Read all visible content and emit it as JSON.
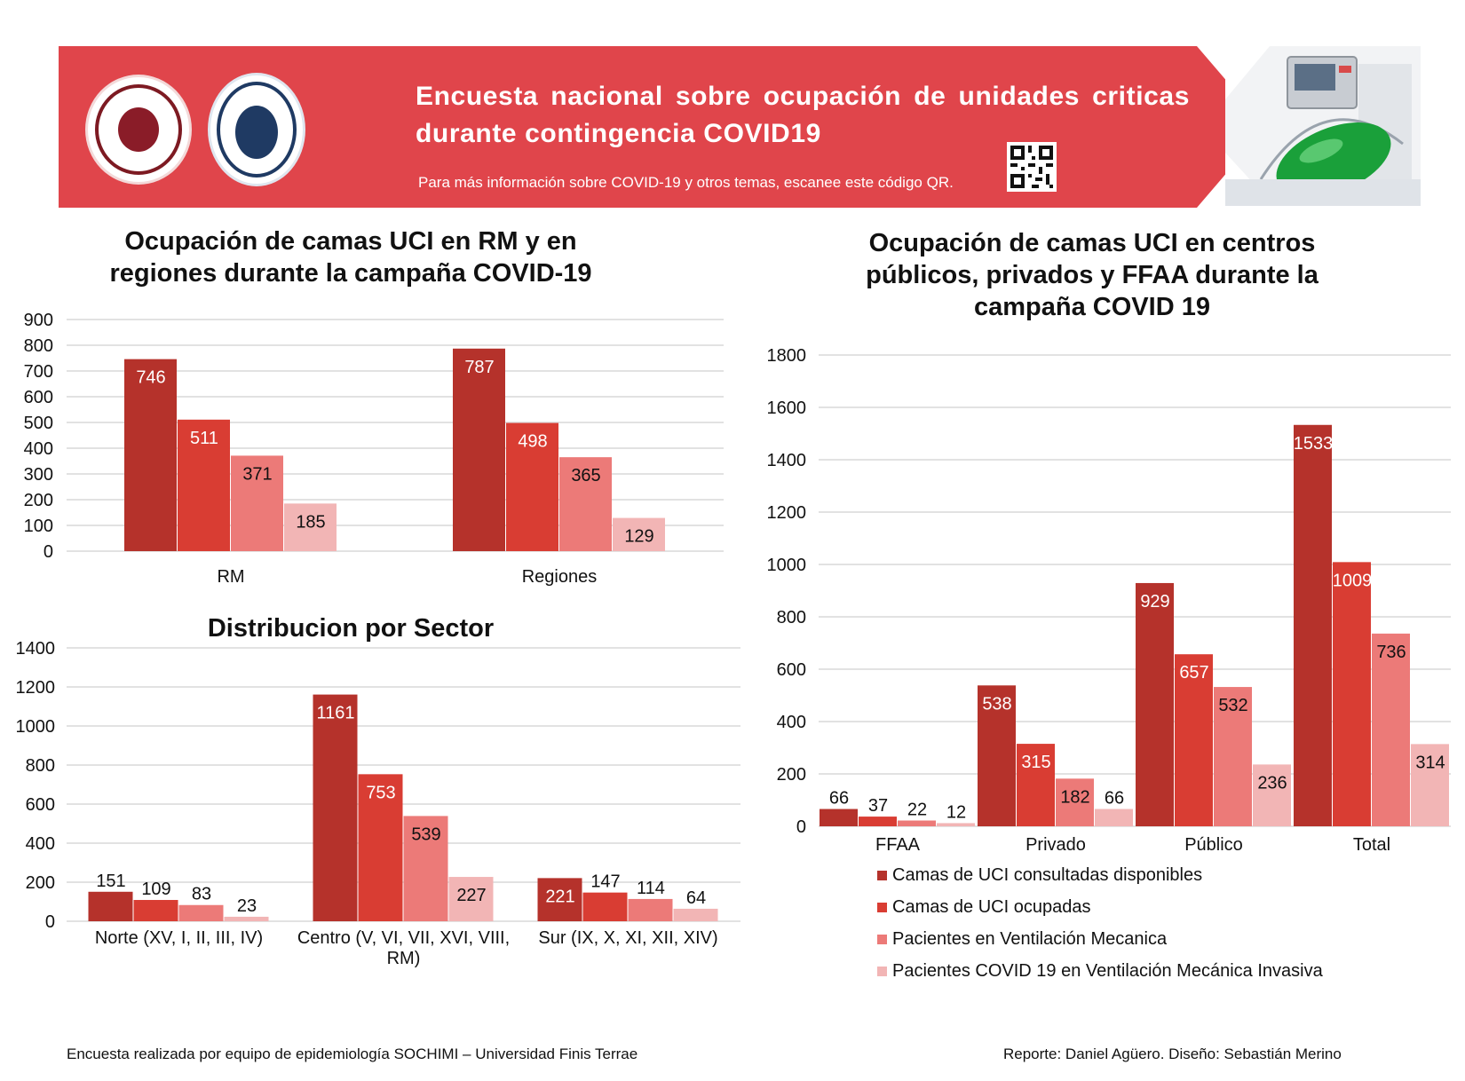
{
  "header": {
    "title": "Encuesta nacional sobre ocupación de unidades criticas durante contingencia COVID19",
    "subtitle": "Para más información sobre COVID-19 y otros temas, escanee este código QR.",
    "banner_color": "#e0454b",
    "logos": [
      "sochimi-logo",
      "universidad-finis-terrae-logo"
    ],
    "icons": [
      "qr-code-icon",
      "icu-ventilator-photo"
    ]
  },
  "colors": [
    "#b5322b",
    "#d93d33",
    "#ec7a78",
    "#f2b5b5"
  ],
  "chart_data": [
    {
      "type": "bar",
      "title": "Ocupación de camas UCI en RM y en regiones durante la campaña COVID-19",
      "categories": [
        "RM",
        "Regiones"
      ],
      "series": [
        {
          "values": [
            746,
            787
          ]
        },
        {
          "values": [
            511,
            498
          ]
        },
        {
          "values": [
            371,
            365
          ]
        },
        {
          "values": [
            185,
            129
          ]
        }
      ],
      "ylim": [
        0,
        900
      ],
      "yticks": [
        "0",
        "100",
        "200",
        "300",
        "400",
        "500",
        "600",
        "700",
        "800",
        "900"
      ],
      "grid": true
    },
    {
      "type": "bar",
      "title": "Distribucion por Sector",
      "categories": [
        "Norte (XV, I, II, III, IV)",
        "Centro (V, VI, VII, XVI, VIII, RM)",
        "Sur (IX, X, XI, XII, XIV)"
      ],
      "series": [
        {
          "values": [
            151,
            1161,
            221
          ]
        },
        {
          "values": [
            109,
            753,
            147
          ]
        },
        {
          "values": [
            83,
            539,
            114
          ]
        },
        {
          "values": [
            23,
            227,
            64
          ]
        }
      ],
      "ylim": [
        0,
        1400
      ],
      "yticks": [
        "0",
        "200",
        "400",
        "600",
        "800",
        "1000",
        "1200",
        "1400"
      ],
      "grid": true
    },
    {
      "type": "bar",
      "title": "Ocupación de camas UCI en centros públicos, privados y FFAA durante la campaña COVID 19",
      "categories": [
        "FFAA",
        "Privado",
        "Público",
        "Total"
      ],
      "series": [
        {
          "name": "Camas de UCI consultadas disponibles",
          "values": [
            66,
            538,
            929,
            1533
          ]
        },
        {
          "name": "Camas de UCI ocupadas",
          "values": [
            37,
            315,
            657,
            1009
          ]
        },
        {
          "name": "Pacientes en Ventilación Mecanica",
          "values": [
            22,
            182,
            532,
            736
          ]
        },
        {
          "name": "Pacientes COVID 19 en Ventilación Mecánica Invasiva",
          "values": [
            12,
            66,
            236,
            314
          ]
        }
      ],
      "ylim": [
        0,
        1800
      ],
      "yticks": [
        "0",
        "200",
        "400",
        "600",
        "800",
        "1000",
        "1200",
        "1400",
        "1600",
        "1800"
      ],
      "grid": true,
      "legend_position": "bottom"
    }
  ],
  "footer": {
    "left": "Encuesta realizada por equipo de epidemiología SOCHIMI – Universidad Finis Terrae",
    "right": "Reporte: Daniel Agüero. Diseño: Sebastián Merino"
  }
}
